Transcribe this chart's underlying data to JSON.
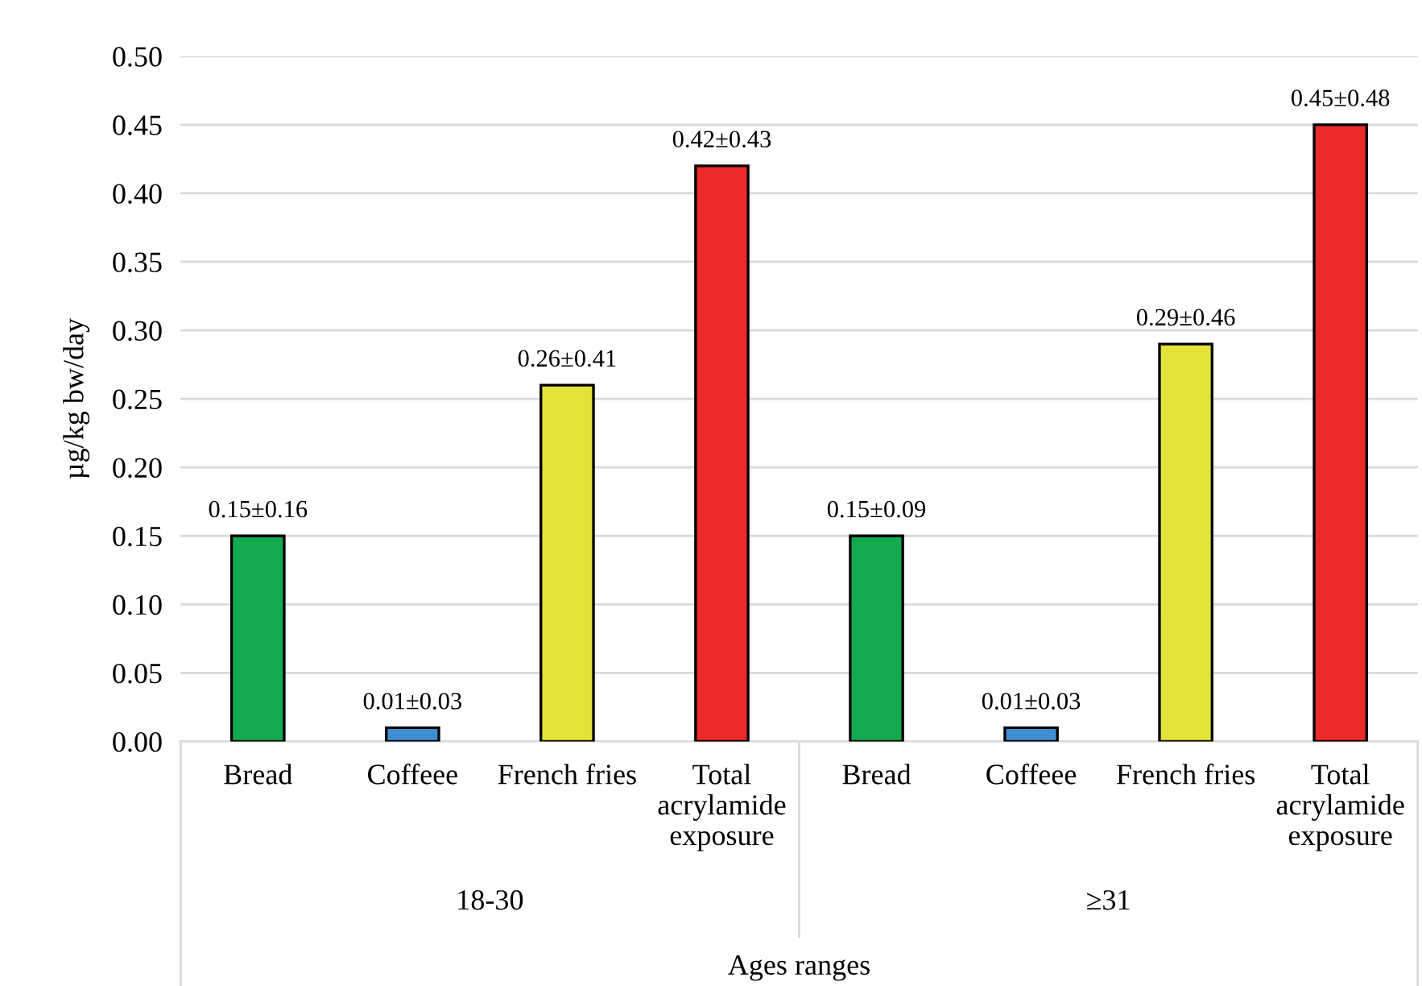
{
  "chart_data": {
    "type": "bar",
    "ylabel": "µg/kg bw/day",
    "xlabel": "Ages ranges",
    "categories": [
      "Bread",
      "Coffeee",
      "French fries",
      "Total\nacrylamide\nexposure",
      "Bread",
      "Coffeee",
      "French fries",
      "Total\nacrylamide\nexposure"
    ],
    "values": [
      0.15,
      0.01,
      0.26,
      0.42,
      0.15,
      0.01,
      0.29,
      0.45
    ],
    "colors": [
      "#13a94f",
      "#3d8fd1",
      "#e3e33a",
      "#ec2a2a",
      "#13a94f",
      "#3d8fd1",
      "#e3e33a",
      "#ec2a2a"
    ],
    "value_labels": [
      "0.15±0.16",
      "0.01±0.03",
      "0.26±0.41",
      "0.42±0.43",
      "0.15±0.09",
      "0.01±0.03",
      "0.29±0.46",
      "0.45±0.48"
    ],
    "annotations": [
      "18-30",
      "≥31"
    ],
    "ylim": [
      0,
      0.5
    ],
    "yticks": [
      {
        "value": 0,
        "label": "0.00"
      },
      {
        "value": 0.05,
        "label": "0.05"
      },
      {
        "value": 0.1,
        "label": "0.10"
      },
      {
        "value": 0.15,
        "label": "0.15"
      },
      {
        "value": 0.2,
        "label": "0.20"
      },
      {
        "value": 0.25,
        "label": "0.25"
      },
      {
        "value": 0.3,
        "label": "0.30"
      },
      {
        "value": 0.35,
        "label": "0.35"
      },
      {
        "value": 0.4,
        "label": "0.40"
      },
      {
        "value": 0.45,
        "label": "0.45"
      },
      {
        "value": 0.5,
        "label": "0.50"
      }
    ],
    "grid": "y",
    "legend": false
  }
}
